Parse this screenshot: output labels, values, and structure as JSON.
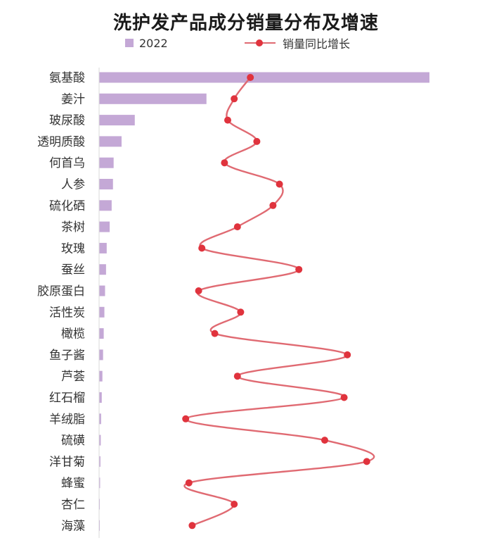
{
  "chart_data": {
    "title": "洗护发产品成分销量分布及增速",
    "type": "bar+line",
    "legend": {
      "bar_series": "2022",
      "line_series": "销量同比增长",
      "position": "top"
    },
    "categories": [
      "氨基酸",
      "姜汁",
      "玻尿酸",
      "透明质酸",
      "何首乌",
      "人参",
      "硫化硒",
      "茶树",
      "玫瑰",
      "蚕丝",
      "胶原蛋白",
      "活性炭",
      "橄榄",
      "鱼子酱",
      "芦荟",
      "红石榴",
      "羊绒脂",
      "硫磺",
      "洋甘菊",
      "蜂蜜",
      "杏仁",
      "海藻"
    ],
    "series": [
      {
        "name": "2022",
        "kind": "bar",
        "color": "#c4a8d6",
        "values": [
          100,
          32.5,
          10.8,
          6.8,
          4.4,
          4.2,
          3.8,
          3.2,
          2.3,
          2.1,
          1.8,
          1.6,
          1.4,
          1.2,
          1.0,
          0.8,
          0.6,
          0.5,
          0.4,
          0.3,
          0.2,
          0.1
        ]
      },
      {
        "name": "销量同比增长",
        "kind": "line",
        "color": "#e0333d",
        "values": [
          47,
          42,
          40,
          49,
          39,
          56,
          54,
          43,
          32,
          62,
          31,
          44,
          36,
          77,
          43,
          76,
          27,
          70,
          83,
          28,
          42,
          29
        ]
      }
    ],
    "axes": {
      "bar_range": [
        0,
        100
      ],
      "line_range": [
        0,
        100
      ],
      "grid": false
    }
  }
}
